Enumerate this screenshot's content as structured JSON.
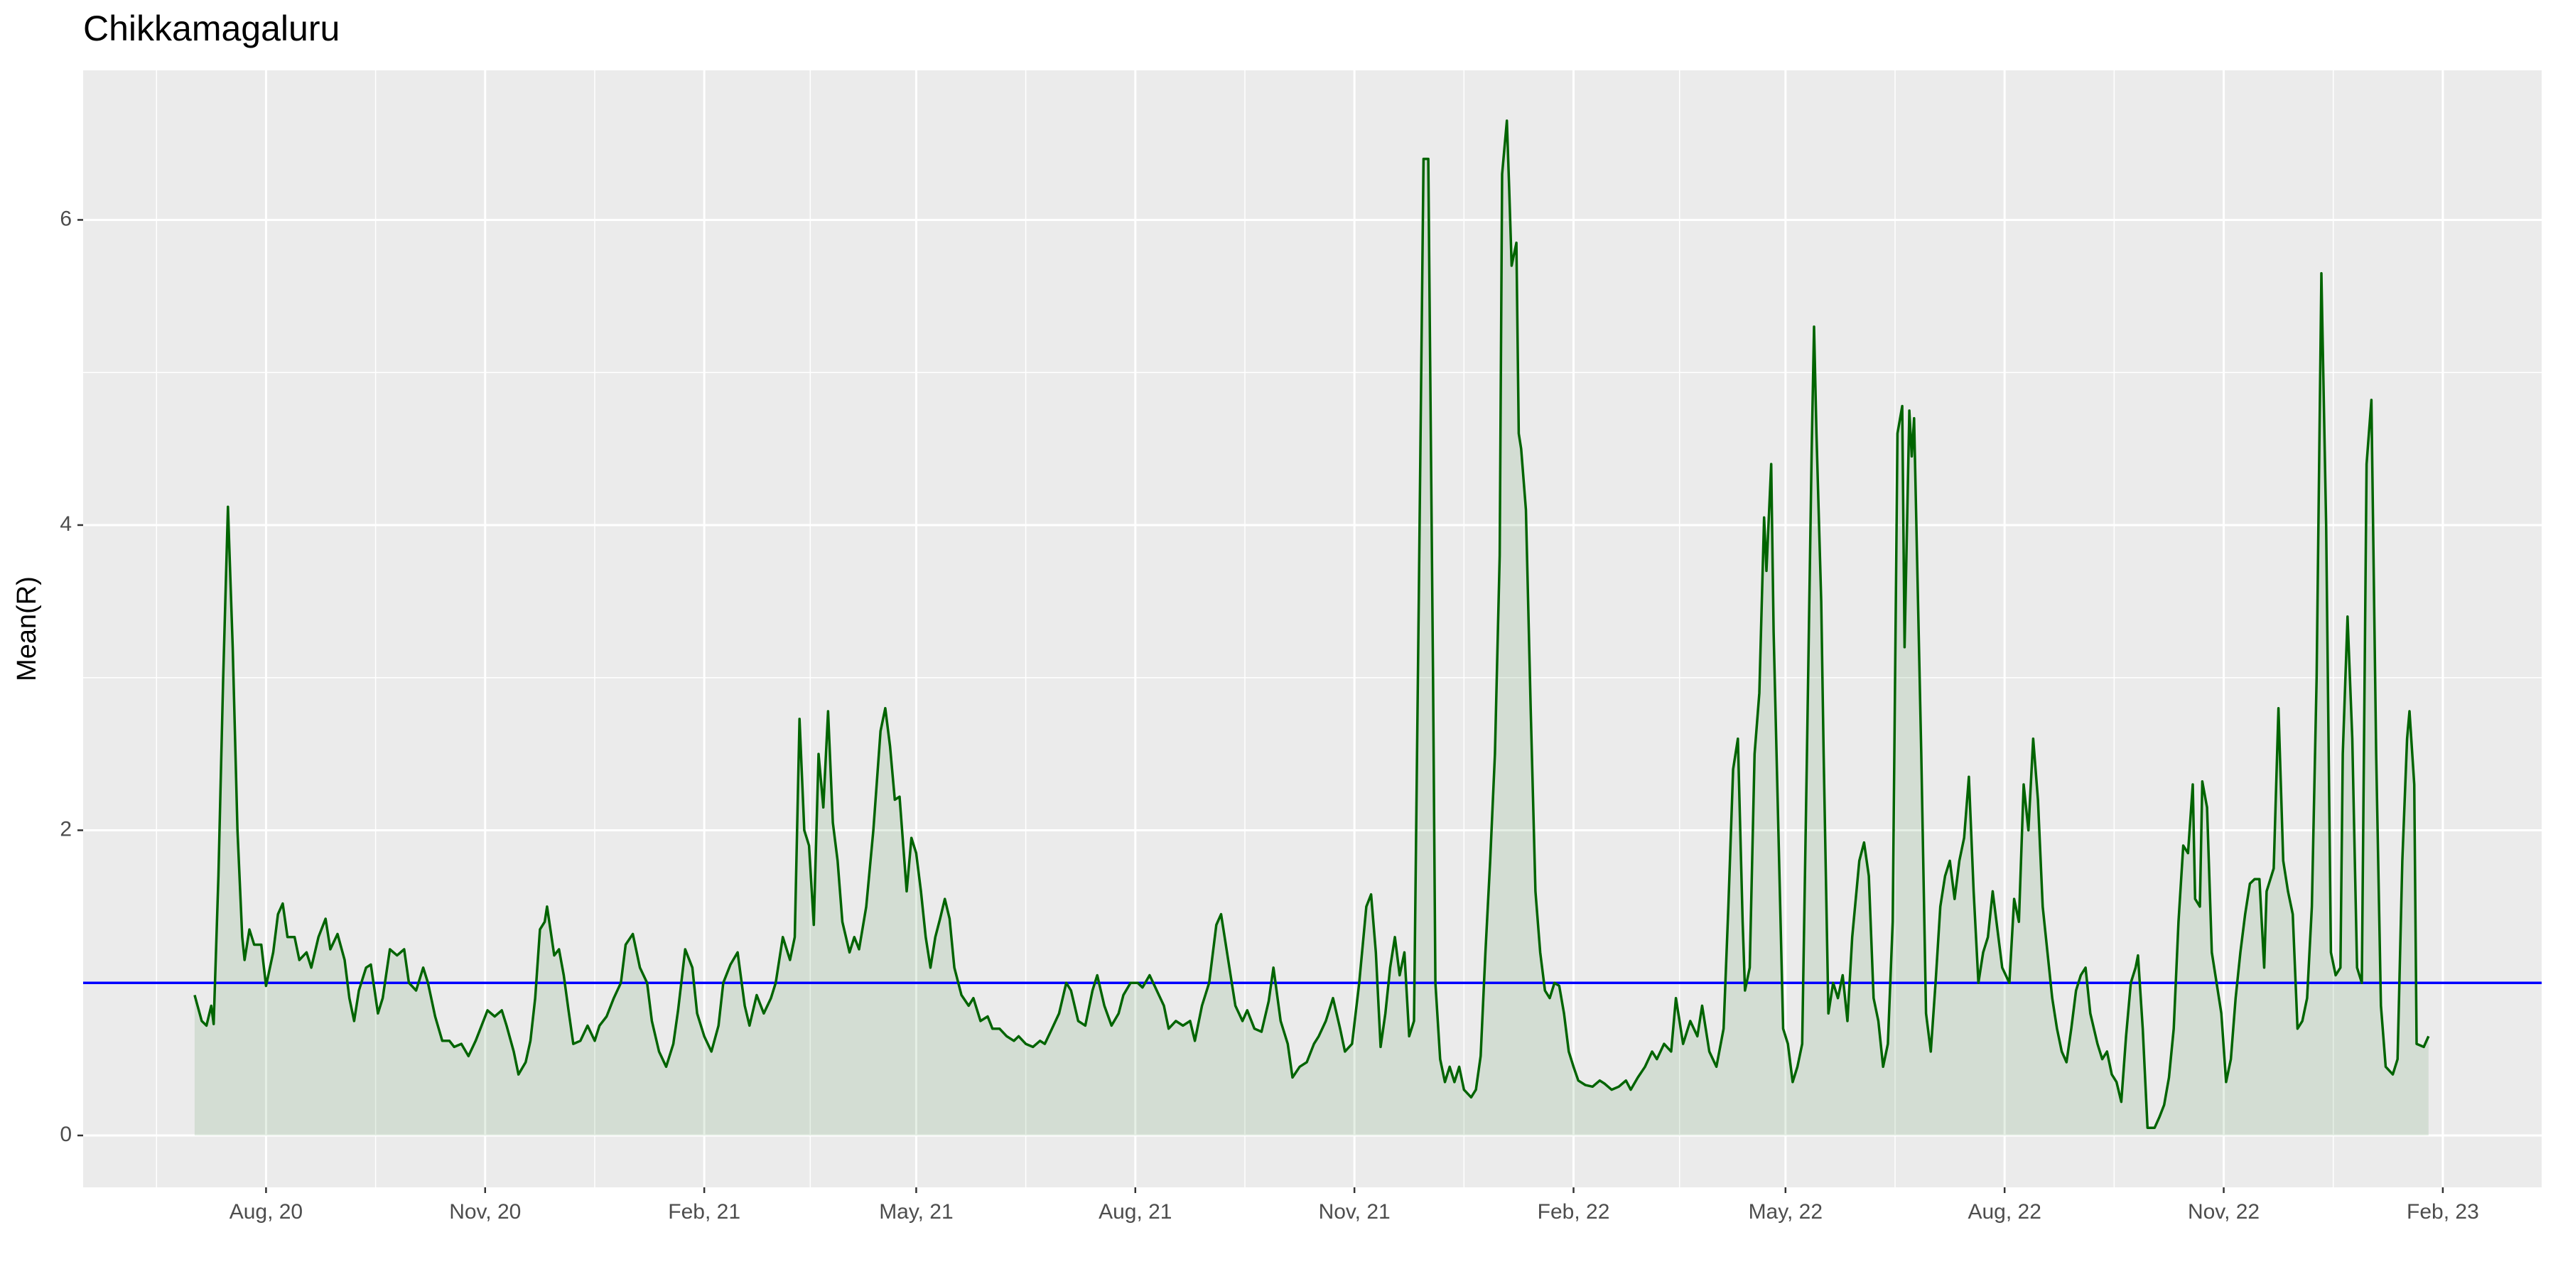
{
  "chart_data": {
    "type": "line",
    "title": "Chikkamagaluru",
    "y_label": "Mean(R)",
    "x": [
      183,
      186,
      188,
      190,
      191,
      193,
      195,
      197,
      199,
      201,
      203,
      204,
      206,
      208,
      211,
      213,
      216,
      218,
      220,
      222,
      225,
      227,
      230,
      232,
      235,
      238,
      240,
      243,
      246,
      248,
      250,
      252,
      255,
      257,
      260,
      262,
      265,
      268,
      271,
      273,
      276,
      279,
      281,
      284,
      287,
      290,
      292,
      295,
      298,
      301,
      303,
      306,
      309,
      312,
      314,
      317,
      319,
      322,
      324,
      326,
      328,
      330,
      331,
      334,
      336,
      338,
      340,
      342,
      345,
      348,
      351,
      353,
      356,
      359,
      362,
      364,
      367,
      370,
      373,
      375,
      378,
      381,
      384,
      386,
      389,
      392,
      394,
      397,
      400,
      403,
      405,
      408,
      411,
      414,
      416,
      419,
      422,
      425,
      427,
      430,
      433,
      435,
      437,
      439,
      441,
      443,
      445,
      447,
      449,
      451,
      453,
      455,
      458,
      460,
      462,
      465,
      468,
      471,
      473,
      475,
      477,
      479,
      482,
      484,
      486,
      488,
      490,
      492,
      494,
      496,
      498,
      500,
      502,
      505,
      508,
      510,
      513,
      516,
      518,
      521,
      524,
      527,
      529,
      532,
      535,
      538,
      540,
      543,
      546,
      549,
      551,
      554,
      557,
      560,
      562,
      565,
      568,
      571,
      573,
      576,
      579,
      581,
      584,
      587,
      590,
      592,
      595,
      598,
      601,
      603,
      606,
      609,
      612,
      614,
      617,
      620,
      623,
      625,
      628,
      631,
      634,
      636,
      639,
      642,
      644,
      647,
      650,
      653,
      655,
      658,
      661,
      664,
      666,
      669,
      672,
      675,
      677,
      679,
      681,
      683,
      685,
      687,
      689,
      691,
      693,
      695,
      697,
      699,
      701,
      703,
      704,
      706,
      708,
      710,
      712,
      714,
      716,
      719,
      721,
      723,
      725,
      727,
      729,
      731,
      732,
      734,
      735,
      736,
      738,
      739,
      740,
      742,
      744,
      746,
      748,
      750,
      752,
      754,
      756,
      758,
      760,
      762,
      764,
      767,
      770,
      773,
      775,
      778,
      781,
      784,
      786,
      789,
      792,
      795,
      797,
      800,
      803,
      805,
      808,
      811,
      814,
      816,
      819,
      822,
      825,
      827,
      829,
      831,
      833,
      834,
      836,
      838,
      840,
      842,
      843,
      845,
      846,
      848,
      850,
      852,
      854,
      856,
      858,
      860,
      862,
      863,
      864,
      866,
      867,
      869,
      871,
      873,
      875,
      877,
      879,
      882,
      884,
      886,
      888,
      890,
      892,
      894,
      896,
      898,
      900,
      901,
      903,
      904,
      905,
      908,
      910,
      912,
      914,
      916,
      918,
      920,
      922,
      924,
      926,
      928,
      930,
      932,
      934,
      936,
      938,
      940,
      942,
      945,
      947,
      949,
      951,
      953,
      955,
      957,
      959,
      961,
      963,
      965,
      967,
      969,
      971,
      973,
      975,
      977,
      979,
      982,
      984,
      986,
      988,
      990,
      992,
      994,
      996,
      998,
      999,
      1001,
      1003,
      1006,
      1008,
      1010,
      1012,
      1014,
      1016,
      1018,
      1020,
      1022,
      1023,
      1025,
      1026,
      1028,
      1030,
      1032,
      1034,
      1036,
      1038,
      1040,
      1042,
      1044,
      1046,
      1048,
      1050,
      1052,
      1053,
      1056,
      1058,
      1060,
      1062,
      1064,
      1066,
      1068,
      1070,
      1072,
      1074,
      1076,
      1078,
      1080,
      1082,
      1084,
      1085,
      1087,
      1089,
      1091,
      1093,
      1095,
      1097,
      1099,
      1101,
      1103,
      1106,
      1108,
      1110,
      1112,
      1113,
      1115,
      1116,
      1119,
      1121
    ],
    "values": [
      0.92,
      0.75,
      0.72,
      0.85,
      0.73,
      1.7,
      3.0,
      4.12,
      3.2,
      2.0,
      1.3,
      1.15,
      1.35,
      1.25,
      1.25,
      0.98,
      1.2,
      1.45,
      1.52,
      1.3,
      1.3,
      1.15,
      1.2,
      1.1,
      1.3,
      1.42,
      1.22,
      1.32,
      1.15,
      0.9,
      0.75,
      0.95,
      1.1,
      1.12,
      0.8,
      0.9,
      1.22,
      1.18,
      1.22,
      1.0,
      0.95,
      1.1,
      1.0,
      0.78,
      0.62,
      0.62,
      0.58,
      0.6,
      0.52,
      0.62,
      0.7,
      0.82,
      0.78,
      0.82,
      0.72,
      0.55,
      0.4,
      0.48,
      0.62,
      0.9,
      1.35,
      1.4,
      1.5,
      1.18,
      1.22,
      1.05,
      0.82,
      0.6,
      0.62,
      0.72,
      0.62,
      0.72,
      0.78,
      0.9,
      1.0,
      1.25,
      1.32,
      1.1,
      1.0,
      0.75,
      0.55,
      0.45,
      0.6,
      0.82,
      1.22,
      1.1,
      0.8,
      0.65,
      0.55,
      0.72,
      1.0,
      1.12,
      1.2,
      0.85,
      0.72,
      0.92,
      0.8,
      0.9,
      1.0,
      1.3,
      1.15,
      1.3,
      2.73,
      2.0,
      1.9,
      1.38,
      2.5,
      2.15,
      2.78,
      2.05,
      1.8,
      1.4,
      1.2,
      1.3,
      1.22,
      1.5,
      2.0,
      2.65,
      2.8,
      2.55,
      2.2,
      2.22,
      1.6,
      1.95,
      1.85,
      1.6,
      1.3,
      1.1,
      1.3,
      1.42,
      1.55,
      1.42,
      1.1,
      0.92,
      0.85,
      0.9,
      0.75,
      0.78,
      0.7,
      0.7,
      0.65,
      0.62,
      0.65,
      0.6,
      0.58,
      0.62,
      0.6,
      0.7,
      0.8,
      1.0,
      0.95,
      0.75,
      0.72,
      0.95,
      1.05,
      0.85,
      0.72,
      0.8,
      0.92,
      1.0,
      1.0,
      0.97,
      1.05,
      0.95,
      0.85,
      0.7,
      0.75,
      0.72,
      0.75,
      0.62,
      0.85,
      1.0,
      1.38,
      1.45,
      1.15,
      0.85,
      0.75,
      0.82,
      0.7,
      0.68,
      0.88,
      1.1,
      0.75,
      0.6,
      0.38,
      0.45,
      0.48,
      0.6,
      0.65,
      0.75,
      0.9,
      0.7,
      0.55,
      0.6,
      1.0,
      1.5,
      1.58,
      1.2,
      0.58,
      0.8,
      1.1,
      1.3,
      1.05,
      1.2,
      0.65,
      0.75,
      3.5,
      6.4,
      6.4,
      3.0,
      1.0,
      0.5,
      0.35,
      0.45,
      0.35,
      0.45,
      0.3,
      0.25,
      0.3,
      0.52,
      1.2,
      1.8,
      2.5,
      3.8,
      6.3,
      6.65,
      6.2,
      5.7,
      5.85,
      4.6,
      4.5,
      4.1,
      2.8,
      1.6,
      1.2,
      0.95,
      0.9,
      1.0,
      0.98,
      0.8,
      0.55,
      0.45,
      0.36,
      0.33,
      0.32,
      0.36,
      0.34,
      0.3,
      0.32,
      0.36,
      0.3,
      0.38,
      0.45,
      0.55,
      0.5,
      0.6,
      0.55,
      0.9,
      0.6,
      0.75,
      0.65,
      0.85,
      0.55,
      0.45,
      0.7,
      1.5,
      2.4,
      2.6,
      1.4,
      0.95,
      1.1,
      2.5,
      2.9,
      4.05,
      3.7,
      4.4,
      3.3,
      2.0,
      0.7,
      0.6,
      0.35,
      0.45,
      0.6,
      2.5,
      4.5,
      5.3,
      4.6,
      3.5,
      2.5,
      0.8,
      1.0,
      0.9,
      1.05,
      0.75,
      1.3,
      1.8,
      1.92,
      1.7,
      0.9,
      0.75,
      0.45,
      0.6,
      1.4,
      4.6,
      4.78,
      3.2,
      4.75,
      4.45,
      4.7,
      2.5,
      0.8,
      0.55,
      1.0,
      1.5,
      1.7,
      1.8,
      1.55,
      1.8,
      1.95,
      2.35,
      1.6,
      1.0,
      1.2,
      1.3,
      1.6,
      1.35,
      1.1,
      1.0,
      1.55,
      1.4,
      2.3,
      2.0,
      2.6,
      2.2,
      1.5,
      1.2,
      0.9,
      0.7,
      0.55,
      0.48,
      0.7,
      0.95,
      1.05,
      1.1,
      0.8,
      0.6,
      0.5,
      0.55,
      0.4,
      0.35,
      0.22,
      0.65,
      1.0,
      1.1,
      1.18,
      0.7,
      0.05,
      0.05,
      0.12,
      0.2,
      0.38,
      0.7,
      1.4,
      1.9,
      1.85,
      2.3,
      1.55,
      1.5,
      2.32,
      2.15,
      1.2,
      1.0,
      0.8,
      0.35,
      0.5,
      0.9,
      1.2,
      1.45,
      1.65,
      1.68,
      1.68,
      1.1,
      1.6,
      1.75,
      2.8,
      1.8,
      1.6,
      1.45,
      0.7,
      0.75,
      0.9,
      1.5,
      3.0,
      5.65,
      4.0,
      1.2,
      1.05,
      1.1,
      2.5,
      3.4,
      2.6,
      1.1,
      1.0,
      4.4,
      4.82,
      2.5,
      0.85,
      0.45,
      0.4,
      0.5,
      1.8,
      2.6,
      2.78,
      2.3,
      0.6,
      0.58,
      0.65
    ],
    "color": "#006400",
    "fill_color": "#006400",
    "hline": {
      "value": 1,
      "color": "#0000ff"
    },
    "xlim": [
      136.2,
      1168.5
    ],
    "xticks": [
      {
        "value": 213,
        "label": "Aug, 20"
      },
      {
        "value": 305,
        "label": "Nov, 20"
      },
      {
        "value": 397,
        "label": "Feb, 21"
      },
      {
        "value": 486,
        "label": "May, 21"
      },
      {
        "value": 578,
        "label": "Aug, 21"
      },
      {
        "value": 670,
        "label": "Nov, 21"
      },
      {
        "value": 762,
        "label": "Feb, 22"
      },
      {
        "value": 851,
        "label": "May, 22"
      },
      {
        "value": 943,
        "label": "Aug, 22"
      },
      {
        "value": 1035,
        "label": "Nov, 22"
      },
      {
        "value": 1127,
        "label": "Feb, 23"
      }
    ],
    "ylim": [
      -0.34,
      6.98
    ],
    "yticks": [
      0,
      2,
      4,
      6
    ],
    "grid": true
  }
}
